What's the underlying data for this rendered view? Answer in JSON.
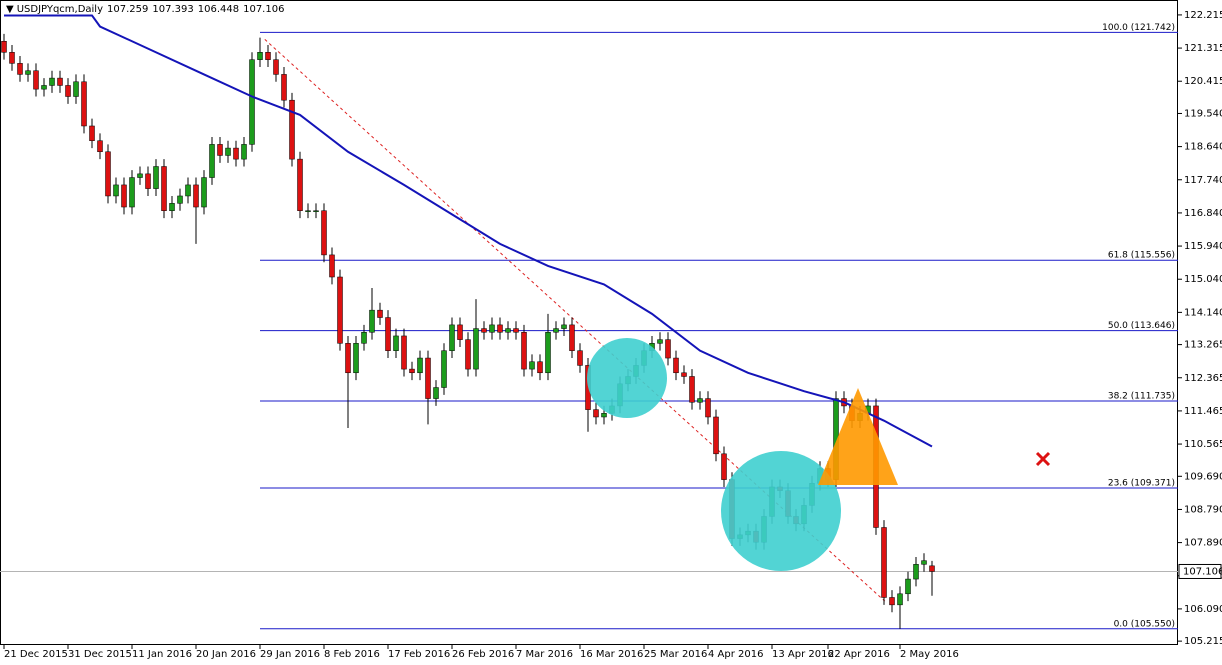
{
  "header": {
    "symbol": "USDJPYqcm,Daily",
    "values": [
      107.259,
      107.393,
      106.448,
      107.106
    ]
  },
  "chart_data": {
    "type": "candlestick",
    "bull_color": "#1c9c1c",
    "bear_color": "#dd1111",
    "xlim": [
      -0.5,
      146.75
    ],
    "ylim": [
      105.11,
      122.62
    ],
    "yticks": [
      122.215,
      121.315,
      120.415,
      {
        "value": 119.54,
        "label": "119.540"
      },
      {
        "value": 118.64,
        "label": "118.640"
      },
      {
        "value": 117.74,
        "label": "117.740"
      },
      {
        "value": 116.84,
        "label": "116.840"
      },
      {
        "value": 115.94,
        "label": "115.940"
      },
      {
        "value": 115.04,
        "label": "115.040"
      },
      {
        "value": 114.14,
        "label": "114.140"
      },
      113.265,
      112.365,
      111.465,
      110.565,
      {
        "value": 109.69,
        "label": "109.690"
      },
      {
        "value": 108.79,
        "label": "108.790"
      },
      {
        "value": 107.89,
        "label": "107.890"
      },
      {
        "value": 106.99,
        "label": "106.990"
      },
      {
        "value": 106.09,
        "label": "106.090"
      },
      105.215
    ],
    "xticks": [
      {
        "value": 0,
        "label": "21 Dec 2015"
      },
      {
        "value": 8,
        "label": "31 Dec 2015"
      },
      {
        "value": 16,
        "label": "11 Jan 2016"
      },
      {
        "value": 24,
        "label": "20 Jan 2016"
      },
      {
        "value": 32,
        "label": "29 Jan 2016"
      },
      {
        "value": 40,
        "label": "8 Feb 2016"
      },
      {
        "value": 48,
        "label": "17 Feb 2016"
      },
      {
        "value": 56,
        "label": "26 Feb 2016"
      },
      {
        "value": 64,
        "label": "7 Mar 2016"
      },
      {
        "value": 72,
        "label": "16 Mar 2016"
      },
      {
        "value": 80,
        "label": "25 Mar 2016"
      },
      {
        "value": 88,
        "label": "4 Apr 2016"
      },
      {
        "value": 96,
        "label": "13 Apr 2016"
      },
      {
        "value": 103,
        "label": "22 Apr 2016"
      },
      {
        "value": 112,
        "label": "2 May 2016"
      }
    ],
    "open": [
      121.5,
      121.2,
      120.9,
      120.6,
      120.7,
      120.2,
      120.3,
      120.5,
      120.3,
      120.0,
      120.4,
      119.2,
      118.8,
      118.5,
      117.3,
      117.6,
      117.0,
      117.8,
      117.9,
      117.5,
      118.1,
      116.9,
      117.1,
      117.3,
      117.6,
      117.0,
      117.8,
      118.7,
      118.4,
      118.6,
      118.3,
      118.7,
      121.0,
      121.2,
      121.0,
      120.6,
      119.9,
      118.3,
      116.9,
      116.9,
      116.9,
      115.7,
      115.1,
      113.3,
      112.5,
      113.3,
      113.6,
      114.2,
      114.0,
      113.1,
      113.5,
      112.6,
      112.5,
      112.9,
      111.8,
      112.1,
      113.1,
      113.8,
      113.4,
      112.6,
      113.7,
      113.6,
      113.8,
      113.6,
      113.7,
      113.6,
      112.6,
      112.8,
      112.5,
      113.6,
      113.7,
      113.8,
      113.1,
      112.7,
      111.5,
      111.3,
      111.4,
      111.6,
      112.2,
      112.4,
      112.7,
      113.1,
      113.3,
      113.4,
      112.9,
      112.5,
      112.4,
      111.7,
      111.8,
      111.3,
      110.3,
      109.6,
      108.0,
      108.1,
      108.2,
      107.9,
      108.6,
      109.4,
      109.3,
      108.6,
      108.4,
      108.9,
      109.5,
      109.9,
      109.6,
      111.8,
      111.6,
      111.2,
      111.4,
      111.6,
      108.3,
      106.4,
      106.2,
      106.5,
      106.9,
      107.3,
      107.259
    ],
    "high": [
      121.7,
      121.4,
      121.1,
      120.9,
      120.9,
      120.5,
      120.7,
      120.7,
      120.5,
      120.6,
      120.6,
      119.4,
      119.0,
      118.7,
      117.8,
      117.8,
      118.0,
      118.1,
      118.1,
      118.3,
      118.3,
      117.3,
      117.5,
      117.8,
      117.8,
      118.0,
      118.9,
      118.9,
      118.8,
      118.8,
      118.9,
      121.2,
      121.6,
      121.4,
      121.2,
      120.8,
      120.1,
      118.5,
      117.1,
      117.1,
      117.1,
      115.9,
      115.3,
      113.5,
      113.5,
      113.8,
      114.8,
      114.4,
      114.2,
      113.7,
      113.7,
      112.8,
      113.1,
      113.1,
      112.3,
      113.3,
      114.0,
      114.0,
      113.6,
      114.5,
      113.9,
      114.0,
      114.0,
      113.9,
      113.9,
      113.8,
      113.0,
      113.0,
      114.1,
      113.9,
      114.0,
      114.0,
      113.3,
      112.9,
      111.7,
      111.6,
      111.8,
      112.4,
      112.6,
      112.9,
      113.3,
      113.5,
      113.6,
      113.6,
      113.1,
      112.7,
      112.6,
      112.0,
      112.0,
      111.5,
      110.5,
      109.8,
      108.3,
      108.4,
      108.4,
      108.8,
      109.6,
      109.6,
      109.5,
      108.8,
      109.1,
      109.7,
      110.1,
      110.1,
      112.0,
      112.0,
      111.8,
      111.6,
      111.8,
      111.8,
      108.5,
      106.6,
      106.7,
      107.1,
      107.5,
      107.6,
      107.393
    ],
    "low": [
      121.0,
      120.7,
      120.4,
      120.4,
      120.0,
      120.0,
      120.1,
      120.1,
      119.8,
      119.8,
      119.0,
      118.6,
      118.3,
      117.1,
      117.1,
      116.8,
      116.8,
      117.6,
      117.3,
      117.3,
      116.7,
      116.7,
      116.9,
      117.1,
      116.0,
      116.8,
      117.6,
      118.2,
      118.2,
      118.1,
      118.1,
      118.5,
      120.8,
      120.8,
      120.4,
      119.7,
      118.1,
      116.7,
      116.7,
      116.7,
      115.5,
      114.9,
      113.1,
      111.0,
      112.3,
      113.1,
      113.4,
      113.8,
      112.9,
      112.9,
      112.4,
      112.3,
      112.3,
      111.1,
      111.6,
      111.9,
      112.9,
      113.2,
      112.4,
      112.4,
      113.4,
      113.4,
      113.4,
      113.4,
      113.4,
      112.4,
      112.4,
      112.3,
      112.3,
      113.4,
      113.5,
      112.9,
      112.5,
      110.9,
      111.1,
      111.1,
      111.2,
      111.4,
      112.0,
      112.2,
      112.5,
      112.9,
      113.1,
      112.7,
      112.3,
      112.2,
      111.5,
      111.5,
      111.1,
      110.1,
      109.4,
      107.8,
      107.8,
      107.9,
      107.7,
      107.7,
      108.4,
      109.1,
      108.4,
      108.2,
      108.2,
      108.7,
      109.3,
      109.4,
      109.4,
      111.4,
      111.0,
      111.0,
      111.2,
      108.1,
      106.2,
      106.0,
      105.55,
      106.3,
      106.7,
      107.1,
      106.448
    ],
    "close": [
      121.2,
      120.9,
      120.6,
      120.7,
      120.2,
      120.3,
      120.5,
      120.3,
      120.0,
      120.4,
      119.2,
      118.8,
      118.5,
      117.3,
      117.6,
      117.0,
      117.8,
      117.9,
      117.5,
      118.1,
      116.9,
      117.1,
      117.3,
      117.6,
      117.0,
      117.8,
      118.7,
      118.4,
      118.6,
      118.3,
      118.7,
      121.0,
      121.2,
      121.0,
      120.6,
      119.9,
      118.3,
      116.9,
      116.9,
      116.9,
      115.7,
      115.1,
      113.3,
      112.5,
      113.3,
      113.6,
      114.2,
      114.0,
      113.1,
      113.5,
      112.6,
      112.5,
      112.9,
      111.8,
      112.1,
      113.1,
      113.8,
      113.4,
      112.6,
      113.7,
      113.6,
      113.8,
      113.6,
      113.7,
      113.6,
      112.6,
      112.8,
      112.5,
      113.6,
      113.7,
      113.8,
      113.1,
      112.7,
      111.5,
      111.3,
      111.4,
      111.6,
      112.2,
      112.4,
      112.7,
      113.1,
      113.3,
      113.4,
      112.9,
      112.5,
      112.4,
      111.7,
      111.8,
      111.3,
      110.3,
      109.6,
      108.0,
      108.1,
      108.2,
      107.9,
      108.6,
      109.4,
      109.3,
      108.6,
      108.4,
      108.9,
      109.5,
      109.9,
      109.6,
      111.8,
      111.6,
      111.2,
      111.4,
      111.6,
      108.3,
      106.4,
      106.2,
      106.5,
      106.9,
      107.3,
      107.4,
      107.106
    ],
    "ma": {
      "color": "#1414b8",
      "x": [
        0,
        11,
        12,
        18,
        25,
        31,
        37,
        43,
        50,
        56,
        62,
        68,
        75,
        81,
        87,
        93,
        100,
        105,
        110,
        116
      ],
      "values": [
        122.2,
        122.2,
        121.9,
        121.3,
        120.6,
        120.0,
        119.5,
        118.5,
        117.6,
        116.8,
        116.0,
        115.4,
        114.9,
        114.1,
        113.1,
        112.5,
        112.0,
        111.7,
        111.2,
        110.5
      ]
    },
    "trendline": {
      "color": "#dd2222",
      "x": [
        32.6,
        110.1
      ],
      "values": [
        121.55,
        106.3
      ]
    },
    "fib_color": "#1a1ac8",
    "fib_start": 32,
    "fib_levels": [
      {
        "label": "100.0 (121.742)",
        "value": 121.742
      },
      {
        "label": "61.8 (115.556)",
        "value": 115.556
      },
      {
        "label": "50.0 (113.646)",
        "value": 113.646
      },
      {
        "label": "38.2 (111.735)",
        "value": 111.735
      },
      {
        "label": "23.6 (109.371)",
        "value": 109.371
      },
      {
        "label": "0.0 (105.550)",
        "value": 105.55
      }
    ],
    "current_price": 107.106
  }
}
